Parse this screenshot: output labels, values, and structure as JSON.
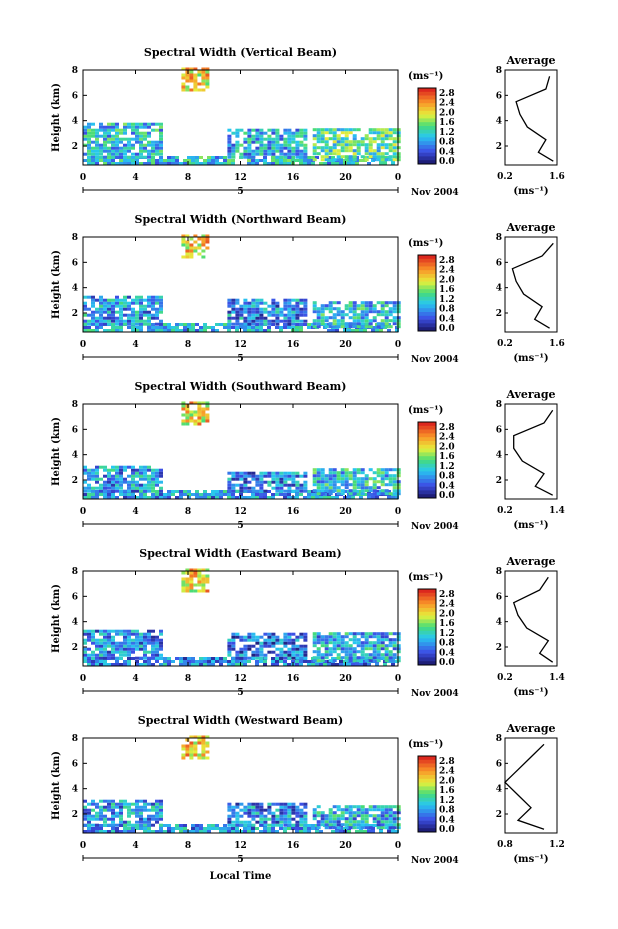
{
  "figure": {
    "x_axis_label": "Local Time",
    "date_label": "Nov 2004",
    "day_label": "5",
    "unit_label": "(ms⁻¹)",
    "avg_title": "Average"
  },
  "chart_data": [
    {
      "type": "heatmap",
      "title": "Spectral Width (Vertical Beam)",
      "ylabel": "Height (km)",
      "xlabel": "",
      "xlim": [
        0,
        24
      ],
      "ylim": [
        0.5,
        8
      ],
      "x_ticks": [
        "0",
        "4",
        "8",
        "12",
        "16",
        "20",
        "0"
      ],
      "y_ticks": [
        "2",
        "4",
        "6",
        "8"
      ],
      "colorbar": {
        "label": "(ms⁻¹)",
        "ticks": [
          "2.8",
          "2.4",
          "2.0",
          "1.6",
          "1.2",
          "0.8",
          "0.4",
          "0.0"
        ],
        "min": 0.0,
        "max": 2.8
      },
      "regions": [
        {
          "t": [
            0,
            24
          ],
          "h": [
            0.5,
            1.0
          ],
          "w": 1.0
        },
        {
          "t": [
            0,
            6
          ],
          "h": [
            1.0,
            3.7
          ],
          "w": 1.0
        },
        {
          "t": [
            11,
            17
          ],
          "h": [
            1.0,
            3.2
          ],
          "w": 0.9
        },
        {
          "t": [
            17.5,
            24
          ],
          "h": [
            0.8,
            3.3
          ],
          "w": 1.3
        },
        {
          "t": [
            7.5,
            9.5
          ],
          "h": [
            6.3,
            8.0
          ],
          "w": 2.0
        }
      ],
      "average": {
        "title": "Average",
        "xlabel": "(ms⁻¹)",
        "x_ticks": [
          "0.2",
          "1.6"
        ],
        "xlim": [
          0.2,
          1.6
        ],
        "heights": [
          0.8,
          1.5,
          2.5,
          3.5,
          4.5,
          5.5,
          6.5,
          7.5
        ],
        "values": [
          1.5,
          1.1,
          1.3,
          0.8,
          0.6,
          0.5,
          1.3,
          1.4
        ]
      }
    },
    {
      "type": "heatmap",
      "title": "Spectral Width (Northward Beam)",
      "ylabel": "Height (km)",
      "xlabel": "",
      "xlim": [
        0,
        24
      ],
      "ylim": [
        0.5,
        8
      ],
      "x_ticks": [
        "0",
        "4",
        "8",
        "12",
        "16",
        "20",
        "0"
      ],
      "y_ticks": [
        "2",
        "4",
        "6",
        "8"
      ],
      "colorbar": {
        "label": "(ms⁻¹)",
        "ticks": [
          "2.8",
          "2.4",
          "2.0",
          "1.6",
          "1.2",
          "0.8",
          "0.4",
          "0.0"
        ],
        "min": 0.0,
        "max": 2.8
      },
      "regions": [
        {
          "t": [
            0,
            24
          ],
          "h": [
            0.5,
            1.0
          ],
          "w": 0.9
        },
        {
          "t": [
            0,
            6
          ],
          "h": [
            1.0,
            3.2
          ],
          "w": 0.8
        },
        {
          "t": [
            11,
            17
          ],
          "h": [
            1.0,
            3.0
          ],
          "w": 0.7
        },
        {
          "t": [
            17.5,
            24
          ],
          "h": [
            0.8,
            2.8
          ],
          "w": 1.0
        },
        {
          "t": [
            7.5,
            9.5
          ],
          "h": [
            6.3,
            8.0
          ],
          "w": 2.0
        }
      ],
      "average": {
        "title": "Average",
        "xlabel": "(ms⁻¹)",
        "x_ticks": [
          "0.2",
          "1.6"
        ],
        "xlim": [
          0.2,
          1.6
        ],
        "heights": [
          0.8,
          1.5,
          2.5,
          3.5,
          4.5,
          5.5,
          6.5,
          7.5
        ],
        "values": [
          1.4,
          1.0,
          1.2,
          0.7,
          0.5,
          0.4,
          1.2,
          1.5
        ]
      }
    },
    {
      "type": "heatmap",
      "title": "Spectral Width (Southward Beam)",
      "ylabel": "Height (km)",
      "xlabel": "",
      "xlim": [
        0,
        24
      ],
      "ylim": [
        0.5,
        8
      ],
      "x_ticks": [
        "0",
        "4",
        "8",
        "12",
        "16",
        "20",
        "0"
      ],
      "y_ticks": [
        "2",
        "4",
        "6",
        "8"
      ],
      "colorbar": {
        "label": "(ms⁻¹)",
        "ticks": [
          "2.8",
          "2.4",
          "2.0",
          "1.6",
          "1.2",
          "0.8",
          "0.4",
          "0.0"
        ],
        "min": 0.0,
        "max": 2.8
      },
      "regions": [
        {
          "t": [
            0,
            24
          ],
          "h": [
            0.5,
            1.0
          ],
          "w": 0.8
        },
        {
          "t": [
            0,
            6
          ],
          "h": [
            1.0,
            3.0
          ],
          "w": 0.8
        },
        {
          "t": [
            11,
            17
          ],
          "h": [
            1.0,
            2.6
          ],
          "w": 0.7
        },
        {
          "t": [
            17.5,
            24
          ],
          "h": [
            0.8,
            2.8
          ],
          "w": 1.0
        },
        {
          "t": [
            7.5,
            9.5
          ],
          "h": [
            6.3,
            8.0
          ],
          "w": 2.0
        }
      ],
      "average": {
        "title": "Average",
        "xlabel": "(ms⁻¹)",
        "x_ticks": [
          "0.2",
          "1.4"
        ],
        "xlim": [
          0.2,
          1.4
        ],
        "heights": [
          0.8,
          1.5,
          2.5,
          3.5,
          4.5,
          5.5,
          6.5,
          7.5
        ],
        "values": [
          1.3,
          0.9,
          1.1,
          0.6,
          0.4,
          0.4,
          1.1,
          1.3
        ]
      }
    },
    {
      "type": "heatmap",
      "title": "Spectral Width (Eastward Beam)",
      "ylabel": "Height (km)",
      "xlabel": "",
      "xlim": [
        0,
        24
      ],
      "ylim": [
        0.5,
        8
      ],
      "x_ticks": [
        "0",
        "4",
        "8",
        "12",
        "16",
        "20",
        "0"
      ],
      "y_ticks": [
        "2",
        "4",
        "6",
        "8"
      ],
      "colorbar": {
        "label": "(ms⁻¹)",
        "ticks": [
          "2.8",
          "2.4",
          "2.0",
          "1.6",
          "1.2",
          "0.8",
          "0.4",
          "0.0"
        ],
        "min": 0.0,
        "max": 2.8
      },
      "regions": [
        {
          "t": [
            0,
            24
          ],
          "h": [
            0.5,
            1.0
          ],
          "w": 0.7
        },
        {
          "t": [
            0,
            6
          ],
          "h": [
            1.0,
            3.3
          ],
          "w": 0.7
        },
        {
          "t": [
            11,
            17
          ],
          "h": [
            1.0,
            3.0
          ],
          "w": 0.6
        },
        {
          "t": [
            17.5,
            24
          ],
          "h": [
            0.8,
            3.0
          ],
          "w": 0.9
        },
        {
          "t": [
            7.5,
            9.5
          ],
          "h": [
            6.3,
            8.0
          ],
          "w": 2.0
        }
      ],
      "average": {
        "title": "Average",
        "xlabel": "(ms⁻¹)",
        "x_ticks": [
          "0.2",
          "1.4"
        ],
        "xlim": [
          0.2,
          1.4
        ],
        "heights": [
          0.8,
          1.5,
          2.5,
          3.5,
          4.5,
          5.5,
          6.5,
          7.5
        ],
        "values": [
          1.3,
          1.0,
          1.2,
          0.7,
          0.5,
          0.4,
          1.0,
          1.2
        ]
      }
    },
    {
      "type": "heatmap",
      "title": "Spectral Width (Westward Beam)",
      "ylabel": "Height (km)",
      "xlabel": "Local Time",
      "xlim": [
        0,
        24
      ],
      "ylim": [
        0.5,
        8
      ],
      "x_ticks": [
        "0",
        "4",
        "8",
        "12",
        "16",
        "20",
        "0"
      ],
      "y_ticks": [
        "2",
        "4",
        "6",
        "8"
      ],
      "colorbar": {
        "label": "(ms⁻¹)",
        "ticks": [
          "2.8",
          "2.4",
          "2.0",
          "1.6",
          "1.2",
          "0.8",
          "0.4",
          "0.0"
        ],
        "min": 0.0,
        "max": 2.8
      },
      "regions": [
        {
          "t": [
            0,
            24
          ],
          "h": [
            0.5,
            1.0
          ],
          "w": 0.8
        },
        {
          "t": [
            0,
            6
          ],
          "h": [
            1.0,
            3.0
          ],
          "w": 0.8
        },
        {
          "t": [
            11,
            17
          ],
          "h": [
            1.0,
            2.8
          ],
          "w": 0.7
        },
        {
          "t": [
            17.5,
            24
          ],
          "h": [
            0.8,
            2.6
          ],
          "w": 0.9
        },
        {
          "t": [
            7.5,
            9.5
          ],
          "h": [
            6.3,
            8.0
          ],
          "w": 2.0
        }
      ],
      "average": {
        "title": "Average",
        "xlabel": "(ms⁻¹)",
        "x_ticks": [
          "0.8",
          "1.2"
        ],
        "xlim": [
          0.8,
          1.2
        ],
        "heights": [
          0.8,
          1.5,
          2.5,
          3.5,
          4.5,
          5.5,
          6.5,
          7.5
        ],
        "values": [
          1.1,
          0.9,
          1.0,
          0.9,
          0.8,
          0.9,
          1.0,
          1.1
        ]
      }
    }
  ]
}
